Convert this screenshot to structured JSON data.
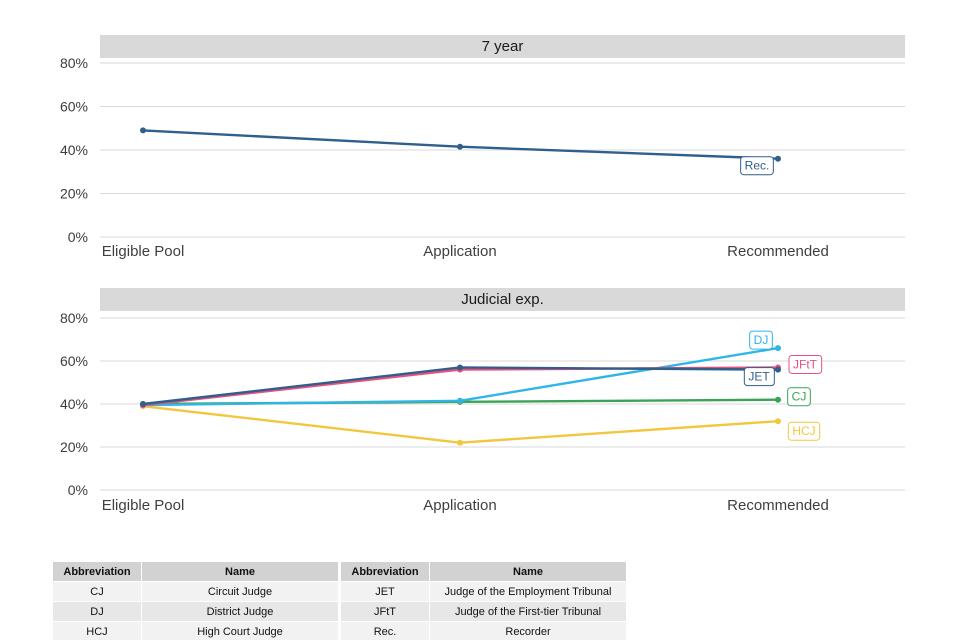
{
  "categories": [
    "Eligible Pool",
    "Application",
    "Recommended"
  ],
  "axis": {
    "ytick_suffix": "%"
  },
  "colors": {
    "dark_blue": "#315f8c",
    "cyan": "#2fb5e8",
    "pink": "#e8517f",
    "green": "#3aa356",
    "yellow": "#f3c63f",
    "grid": "#d9d9d9",
    "title_strip": "#d9d9d9"
  },
  "chart_data": [
    {
      "type": "line",
      "title": "7 year",
      "categories": [
        "Eligible Pool",
        "Application",
        "Recommended"
      ],
      "yticks": [
        0,
        20,
        40,
        60,
        80
      ],
      "ylim": [
        0,
        80
      ],
      "grid": true,
      "series": [
        {
          "name": "Rec.",
          "label": "Rec.",
          "color": "#315f8c",
          "values": [
            49,
            41.5,
            36
          ],
          "label_dx": -21,
          "label_dy": 7
        }
      ]
    },
    {
      "type": "line",
      "title": "Judicial exp.",
      "categories": [
        "Eligible Pool",
        "Application",
        "Recommended"
      ],
      "yticks": [
        0,
        20,
        40,
        60,
        80
      ],
      "ylim": [
        0,
        80
      ],
      "grid": true,
      "series": [
        {
          "name": "HCJ",
          "label": "HCJ",
          "color": "#f3c63f",
          "values": [
            39,
            22,
            32
          ],
          "label_dx": 26,
          "label_dy": 10
        },
        {
          "name": "CJ",
          "label": "CJ",
          "color": "#3aa356",
          "values": [
            40,
            41,
            42
          ],
          "label_dx": 21,
          "label_dy": -3
        },
        {
          "name": "DJ",
          "label": "DJ",
          "color": "#2fb5e8",
          "values": [
            39.5,
            41.5,
            66
          ],
          "label_dx": -17,
          "label_dy": -8
        },
        {
          "name": "JFtT",
          "label": "JFtT",
          "color": "#e8517f",
          "values": [
            39.5,
            56,
            57
          ],
          "label_dx": 27,
          "label_dy": -3
        },
        {
          "name": "JET",
          "label": "JET",
          "color": "#315f8c",
          "values": [
            40,
            57,
            56
          ],
          "label_dx": -19,
          "label_dy": 7
        }
      ]
    }
  ],
  "tables": [
    {
      "headers": [
        "Abbreviation",
        "Name"
      ],
      "rows": [
        [
          "CJ",
          "Circuit Judge"
        ],
        [
          "DJ",
          "District Judge"
        ],
        [
          "HCJ",
          "High Court Judge"
        ]
      ]
    },
    {
      "headers": [
        "Abbreviation",
        "Name"
      ],
      "rows": [
        [
          "JET",
          "Judge of the Employment Tribunal"
        ],
        [
          "JFtT",
          "Judge of the First-tier Tribunal"
        ],
        [
          "Rec.",
          "Recorder"
        ]
      ]
    }
  ]
}
